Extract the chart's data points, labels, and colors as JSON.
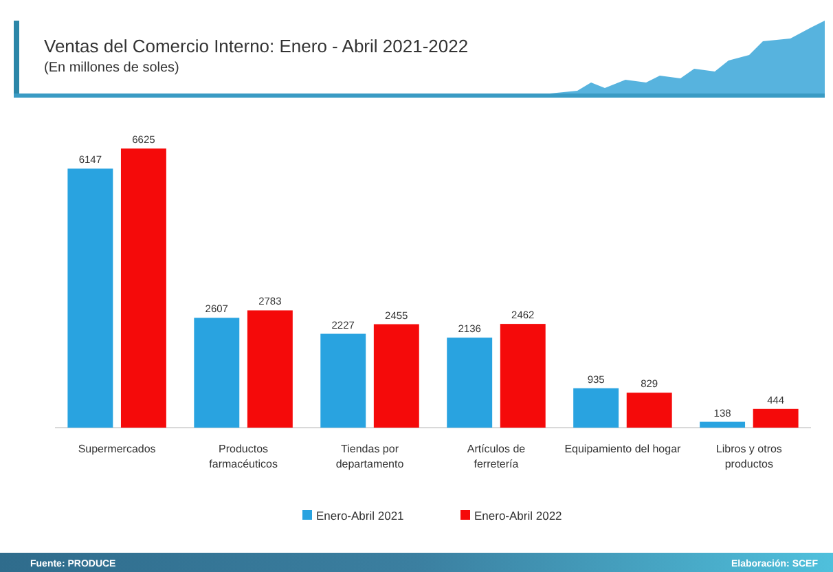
{
  "chart_data": {
    "type": "bar",
    "title": "Ventas del Comercio Interno: Enero - Abril 2021-2022",
    "subtitle": "(En millones de soles)",
    "categories": [
      "Supermercados",
      "Productos farmacéuticos",
      "Tiendas por departamento",
      "Artículos de ferretería",
      "Equipamiento del hogar",
      "Libros y otros productos"
    ],
    "series": [
      {
        "name": "Enero-Abril 2021",
        "color": "#29a3e0",
        "values": [
          6147,
          2607,
          2227,
          2136,
          935,
          138
        ]
      },
      {
        "name": "Enero-Abril 2022",
        "color": "#f50a0a",
        "values": [
          6625,
          2783,
          2455,
          2462,
          829,
          444
        ]
      }
    ],
    "data_labels": true,
    "legend": "bottom",
    "annotations": [
      "Fuente: PRODUCE",
      "Elaboración: SCEF"
    ]
  }
}
